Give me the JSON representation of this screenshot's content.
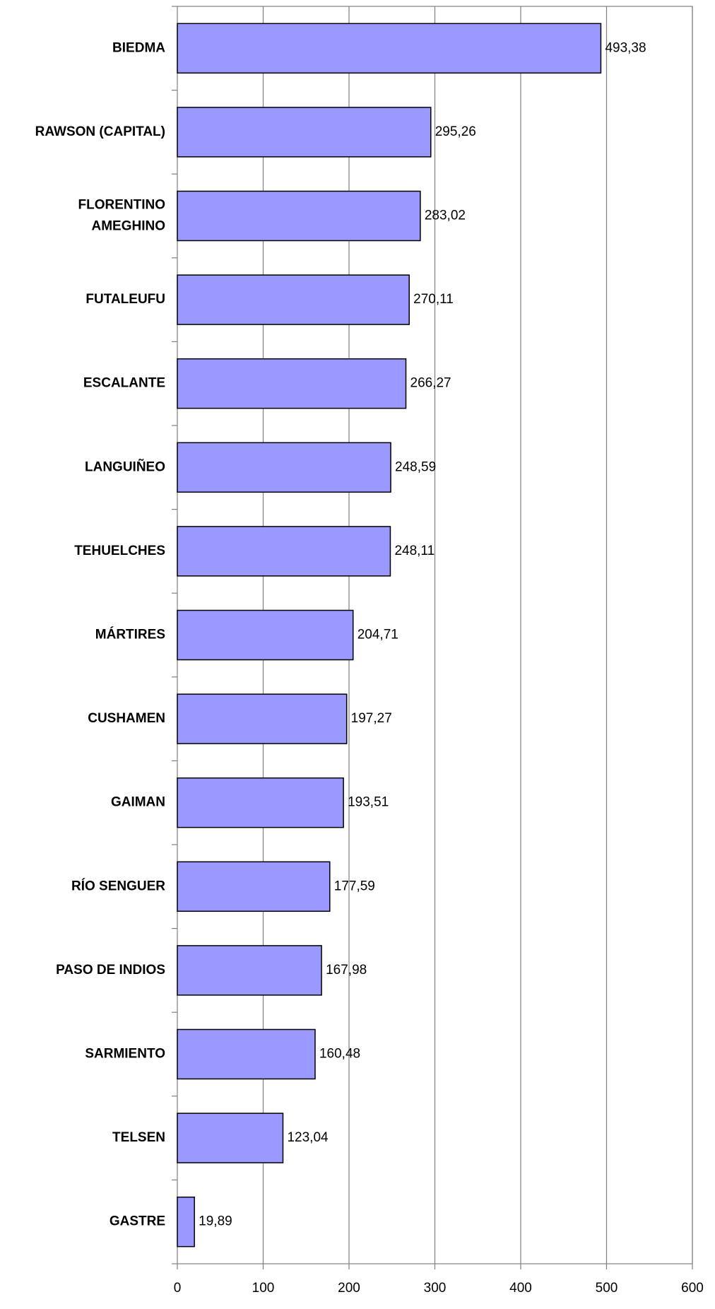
{
  "chart_data": {
    "type": "bar",
    "orientation": "horizontal",
    "categories": [
      "BIEDMA",
      "RAWSON (CAPITAL)",
      "FLORENTINO\nAMEGHINO",
      "FUTALEUFU",
      "ESCALANTE",
      "LANGUIÑEO",
      "TEHUELCHES",
      "MÁRTIRES",
      "CUSHAMEN",
      "GAIMAN",
      "RÍO SENGUER",
      "PASO DE INDIOS",
      "SARMIENTO",
      "TELSEN",
      "GASTRE"
    ],
    "values": [
      493.38,
      295.26,
      283.02,
      270.11,
      266.27,
      248.59,
      248.11,
      204.71,
      197.27,
      193.51,
      177.59,
      167.98,
      160.48,
      123.04,
      19.89
    ],
    "value_labels": [
      "493,38",
      "295,26",
      "283,02",
      "270,11",
      "266,27",
      "248,59",
      "248,11",
      "204,71",
      "197,27",
      "193,51",
      "177,59",
      "167,98",
      "160,48",
      "123,04",
      "19,89"
    ],
    "color": "#9999ff",
    "xlim": [
      0,
      600
    ],
    "xticks": [
      0,
      100,
      200,
      300,
      400,
      500,
      600
    ],
    "grid": true
  }
}
